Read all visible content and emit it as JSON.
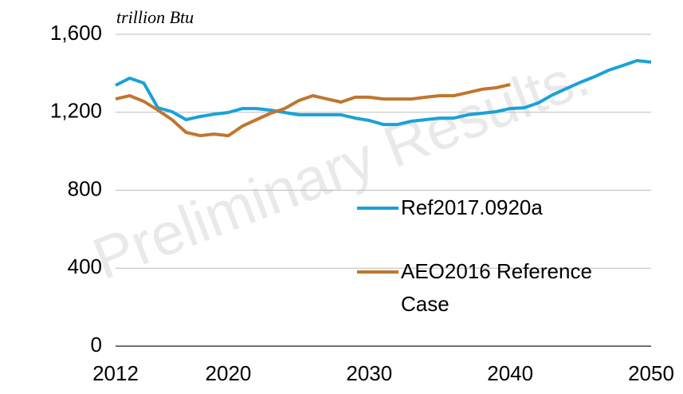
{
  "chart_data": {
    "type": "line",
    "subtitle": "trillion Btu",
    "watermark": "Preliminary Results.",
    "x": [
      2012,
      2013,
      2014,
      2015,
      2016,
      2017,
      2018,
      2019,
      2020,
      2021,
      2022,
      2023,
      2024,
      2025,
      2026,
      2027,
      2028,
      2029,
      2030,
      2031,
      2032,
      2033,
      2034,
      2035,
      2036,
      2037,
      2038,
      2039,
      2040,
      2041,
      2042,
      2043,
      2044,
      2045,
      2046,
      2047,
      2048,
      2049,
      2050
    ],
    "series": [
      {
        "name": "Ref2017.0920a",
        "color": "#1ba1d8",
        "values": [
          1338,
          1375,
          1350,
          1223,
          1203,
          1162,
          1178,
          1190,
          1199,
          1219,
          1219,
          1211,
          1199,
          1187,
          1187,
          1187,
          1187,
          1170,
          1158,
          1137,
          1137,
          1154,
          1162,
          1170,
          1170,
          1187,
          1195,
          1203,
          1219,
          1223,
          1248,
          1289,
          1322,
          1354,
          1383,
          1416,
          1440,
          1465,
          1457
        ]
      },
      {
        "name": "AEO2016 Reference Case",
        "color": "#c0762e",
        "values": [
          1268,
          1285,
          1256,
          1211,
          1162,
          1097,
          1080,
          1088,
          1080,
          1129,
          1162,
          1195,
          1219,
          1260,
          1285,
          1268,
          1252,
          1277,
          1277,
          1268,
          1268,
          1268,
          1277,
          1285,
          1285,
          1301,
          1318,
          1326,
          1342,
          null,
          null,
          null,
          null,
          null,
          null,
          null,
          null,
          null,
          null
        ]
      }
    ],
    "xlim": [
      2012,
      2050
    ],
    "xticks": [
      2012,
      2020,
      2030,
      2040,
      2050
    ],
    "ylim": [
      0,
      1600
    ],
    "yticks": [
      0,
      400,
      800,
      {
        "value": 1200,
        "label": "1,200"
      },
      {
        "value": 1600,
        "label": "1,600"
      }
    ],
    "grid": true
  }
}
